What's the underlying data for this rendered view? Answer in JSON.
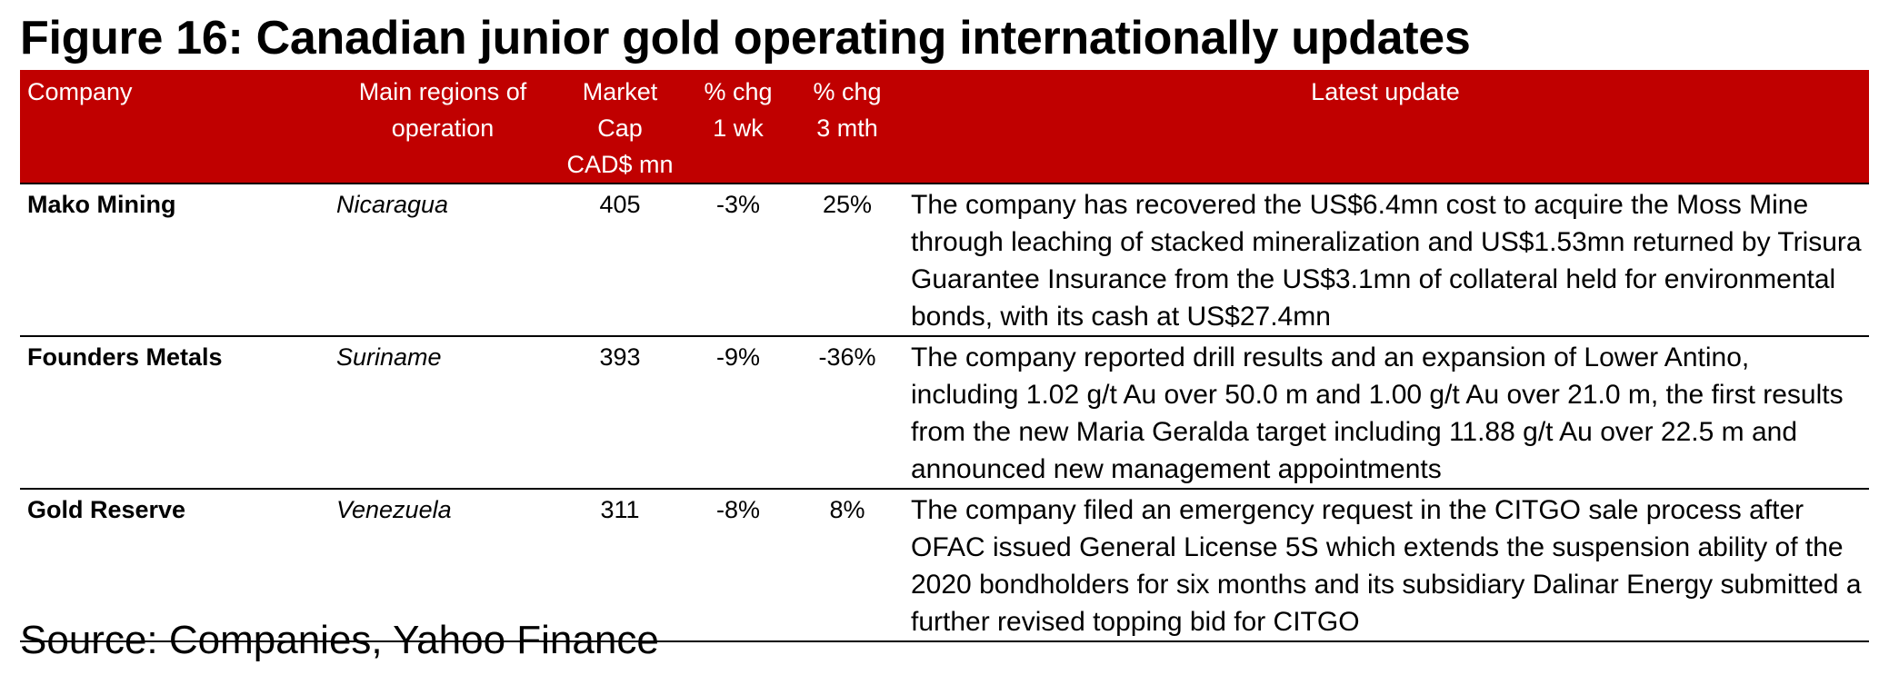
{
  "title": "Figure 16: Canadian junior gold operating internationally updates",
  "table": {
    "headers": {
      "company": "Company",
      "regions_line1": "Main regions of",
      "regions_line2": "operation",
      "mcap_line1": "Market Cap",
      "mcap_line2": "CAD$ mn",
      "chg1wk_line1": "% chg",
      "chg1wk_line2": "1 wk",
      "chg3m_line1": "% chg",
      "chg3m_line2": "3 mth",
      "update": "Latest update"
    },
    "rows": [
      {
        "company": "Mako Mining",
        "region": "Nicaragua",
        "market_cap": "405",
        "chg_1wk": "-3%",
        "chg_3mth": "25%",
        "update": "The company has recovered the US$6.4mn cost to acquire the Moss Mine through leaching of stacked mineralization and US$1.53mn returned by Trisura Guarantee Insurance from the US$3.1mn of collateral held for environmental bonds, with its cash at US$27.4mn"
      },
      {
        "company": "Founders Metals",
        "region": "Suriname",
        "market_cap": "393",
        "chg_1wk": "-9%",
        "chg_3mth": "-36%",
        "update": "The company reported drill results and an expansion of Lower Antino, including 1.02 g/t Au over 50.0 m and 1.00 g/t Au over 21.0 m, the first results from the new Maria Geralda target including 11.88 g/t Au over 22.5 m and announced new management appointments"
      },
      {
        "company": "Gold Reserve",
        "region": "Venezuela",
        "market_cap": "311",
        "chg_1wk": "-8%",
        "chg_3mth": "8%",
        "update": "The company filed an emergency request in the CITGO sale process after OFAC issued General License 5S which extends the suspension ability of the 2020 bondholders for six months and its subsidiary Dalinar Energy submitted a further revised topping bid for CITGO"
      }
    ]
  },
  "source": "Source: Companies, Yahoo Finance"
}
